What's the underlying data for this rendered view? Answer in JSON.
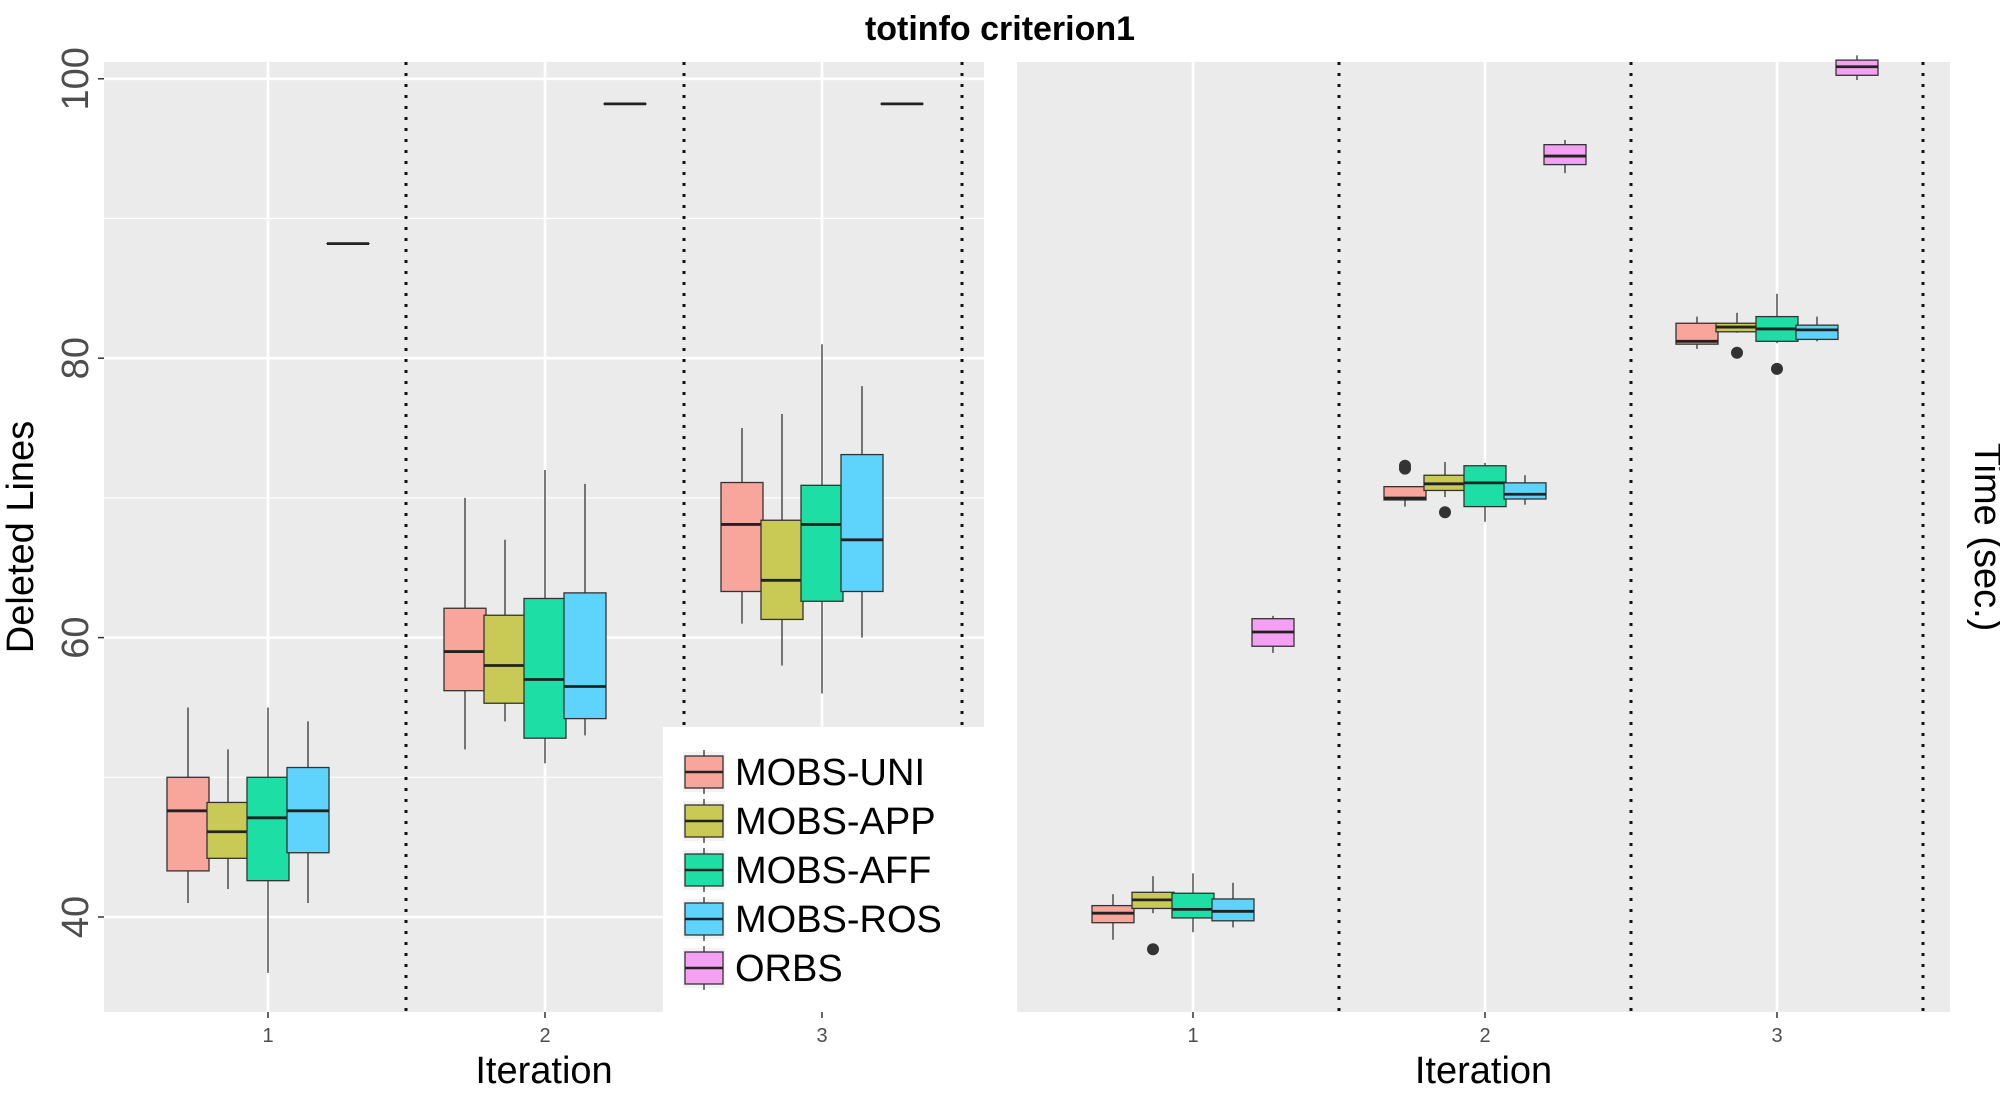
{
  "title": "totinfo criterion1",
  "colors": {
    "MOBS-UNI": "#f8a59c",
    "MOBS-APP": "#c9c955",
    "MOBS-AFF": "#1ddfa6",
    "MOBS-ROS": "#5ed3fb",
    "ORBS": "#f4a1f4",
    "panel_bg": "#ebebeb"
  },
  "legend": {
    "position": "bottom-right of left panel",
    "entries": [
      "MOBS-UNI",
      "MOBS-APP",
      "MOBS-AFF",
      "MOBS-ROS",
      "ORBS"
    ]
  },
  "chart_data": [
    {
      "type": "boxplot",
      "panel": "left",
      "xlabel": "Iteration",
      "ylabel": "Deleted Lines",
      "categories": [
        "1",
        "2",
        "3"
      ],
      "ylim": [
        33.2,
        101.2
      ],
      "yticks": [
        40,
        60,
        80,
        100
      ],
      "grid": true,
      "series": [
        {
          "name": "MOBS-UNI",
          "boxes": [
            {
              "min": 41,
              "q1": 43.3,
              "median": 47.6,
              "q3": 50,
              "max": 55,
              "outliers": []
            },
            {
              "min": 52,
              "q1": 56.2,
              "median": 59,
              "q3": 62.1,
              "max": 70,
              "outliers": []
            },
            {
              "min": 61,
              "q1": 63.3,
              "median": 68.1,
              "q3": 71.1,
              "max": 75,
              "outliers": []
            }
          ]
        },
        {
          "name": "MOBS-APP",
          "boxes": [
            {
              "min": 42,
              "q1": 44.2,
              "median": 46.1,
              "q3": 48.2,
              "max": 52,
              "outliers": []
            },
            {
              "min": 54,
              "q1": 55.3,
              "median": 58,
              "q3": 61.6,
              "max": 67,
              "outliers": []
            },
            {
              "min": 58,
              "q1": 61.3,
              "median": 64.1,
              "q3": 68.4,
              "max": 76,
              "outliers": []
            }
          ]
        },
        {
          "name": "MOBS-AFF",
          "boxes": [
            {
              "min": 36,
              "q1": 42.6,
              "median": 47.1,
              "q3": 50,
              "max": 55,
              "outliers": []
            },
            {
              "min": 51,
              "q1": 52.8,
              "median": 57,
              "q3": 62.8,
              "max": 72,
              "outliers": []
            },
            {
              "min": 56,
              "q1": 62.6,
              "median": 68.1,
              "q3": 70.9,
              "max": 81,
              "outliers": []
            }
          ]
        },
        {
          "name": "MOBS-ROS",
          "boxes": [
            {
              "min": 41,
              "q1": 44.6,
              "median": 47.6,
              "q3": 50.7,
              "max": 54,
              "outliers": []
            },
            {
              "min": 53,
              "q1": 54.2,
              "median": 56.5,
              "q3": 63.2,
              "max": 71,
              "outliers": []
            },
            {
              "min": 60,
              "q1": 63.3,
              "median": 67,
              "q3": 73.1,
              "max": 78,
              "outliers": []
            }
          ]
        },
        {
          "name": "ORBS",
          "boxes": [
            {
              "min": 88.2,
              "q1": 88.2,
              "median": 88.2,
              "q3": 88.2,
              "max": 88.2,
              "outliers": []
            },
            {
              "min": 98.2,
              "q1": 98.2,
              "median": 98.2,
              "q3": 98.2,
              "max": 98.2,
              "outliers": []
            },
            {
              "min": 98.2,
              "q1": 98.2,
              "median": 98.2,
              "q3": 98.2,
              "max": 98.2,
              "outliers": []
            }
          ]
        }
      ]
    },
    {
      "type": "boxplot",
      "panel": "right",
      "xlabel": "Iteration",
      "ylabel": "Time (sec.)",
      "categories": [
        "1",
        "2",
        "3"
      ],
      "ylim": [
        0,
        100
      ],
      "yticks": [],
      "grid": true,
      "series": [
        {
          "name": "MOBS-UNI",
          "boxes": [
            {
              "min": 7.6,
              "q1": 9.4,
              "median": 10.4,
              "q3": 11.2,
              "max": 12.4,
              "outliers": []
            },
            {
              "min": 53.2,
              "q1": 53.9,
              "median": 54.1,
              "q3": 55.3,
              "max": 55.3,
              "outliers": [
                57.2,
                57.5
              ]
            },
            {
              "min": 69.8,
              "q1": 70.3,
              "median": 70.6,
              "q3": 72.5,
              "max": 73.2,
              "outliers": []
            }
          ]
        },
        {
          "name": "MOBS-APP",
          "boxes": [
            {
              "min": 10.4,
              "q1": 10.9,
              "median": 11.8,
              "q3": 12.6,
              "max": 14.3,
              "outliers": [
                6.6
              ]
            },
            {
              "min": 54.2,
              "q1": 54.9,
              "median": 55.6,
              "q3": 56.5,
              "max": 57.9,
              "outliers": [
                52.6
              ]
            },
            {
              "min": 71.5,
              "q1": 71.6,
              "median": 72.1,
              "q3": 72.5,
              "max": 73.6,
              "outliers": [
                69.4
              ]
            }
          ]
        },
        {
          "name": "MOBS-AFF",
          "boxes": [
            {
              "min": 8.4,
              "q1": 9.9,
              "median": 10.8,
              "q3": 12.5,
              "max": 14.6,
              "outliers": []
            },
            {
              "min": 51.6,
              "q1": 53.2,
              "median": 55.7,
              "q3": 57.5,
              "max": 57.8,
              "outliers": []
            },
            {
              "min": 70.4,
              "q1": 70.6,
              "median": 71.9,
              "q3": 73.2,
              "max": 75.6,
              "outliers": [
                67.7
              ]
            }
          ]
        },
        {
          "name": "MOBS-ROS",
          "boxes": [
            {
              "min": 8.9,
              "q1": 9.6,
              "median": 10.6,
              "q3": 11.9,
              "max": 13.6,
              "outliers": []
            },
            {
              "min": 53.4,
              "q1": 54.0,
              "median": 54.5,
              "q3": 55.7,
              "max": 56.5,
              "outliers": []
            },
            {
              "min": 70.6,
              "q1": 70.8,
              "median": 71.8,
              "q3": 72.3,
              "max": 73.2,
              "outliers": []
            }
          ]
        },
        {
          "name": "ORBS",
          "boxes": [
            {
              "min": 37.8,
              "q1": 38.5,
              "median": 40.0,
              "q3": 41.4,
              "max": 41.7,
              "outliers": []
            },
            {
              "min": 88.3,
              "q1": 89.2,
              "median": 90.1,
              "q3": 91.3,
              "max": 91.8,
              "outliers": []
            },
            {
              "min": 98.1,
              "q1": 98.6,
              "median": 99.5,
              "q3": 100.2,
              "max": 100.7,
              "outliers": []
            }
          ]
        }
      ]
    }
  ]
}
